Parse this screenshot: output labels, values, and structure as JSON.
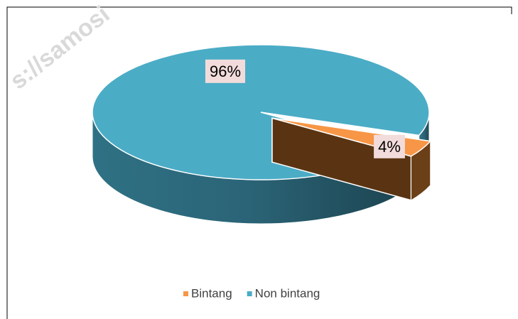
{
  "watermark": "s://samosi",
  "chart_data": {
    "type": "pie",
    "categories": [
      "Bintang",
      "Non bintang"
    ],
    "values": [
      4,
      96
    ],
    "value_labels": [
      "4%",
      "96%"
    ],
    "colors": [
      "#f79646",
      "#4bacc6"
    ],
    "legend": "bottom"
  }
}
